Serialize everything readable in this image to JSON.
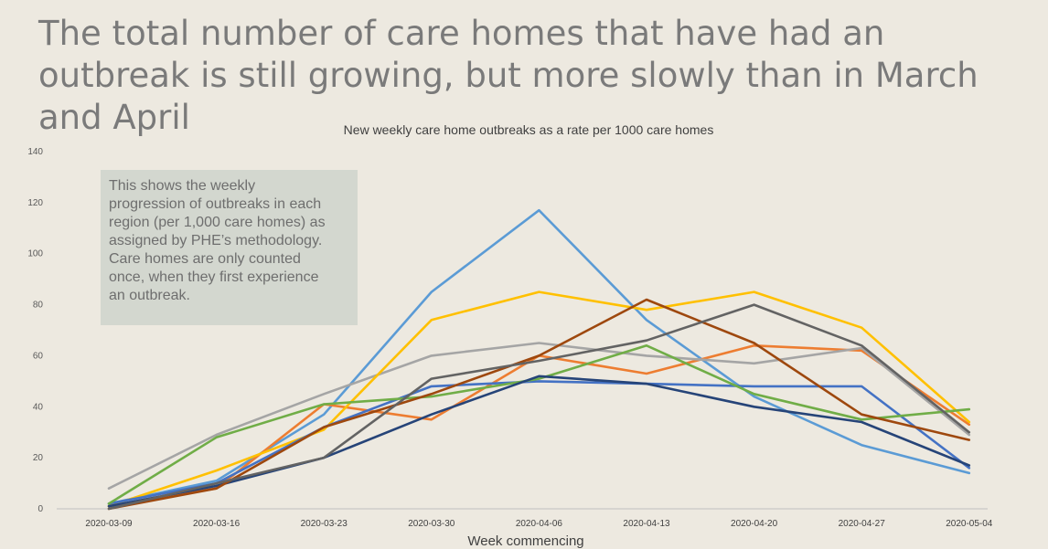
{
  "headline": "The total number of care homes that have had an outbreak is still growing, but more slowly than in March and April",
  "note": "This shows the weekly\nprogression of outbreaks in each\nregion (per 1,000 care homes) as\nassigned by PHE’s methodology.\nCare homes are only counted\nonce, when they first experience\nan outbreak.",
  "chart_data": {
    "type": "line",
    "title": "New weekly care home outbreaks as a rate per 1000 care homes",
    "xlabel": "Week commencing",
    "ylabel": "",
    "ylim": [
      0,
      140
    ],
    "yticks": [
      0,
      20,
      40,
      60,
      80,
      100,
      120,
      140
    ],
    "grid": false,
    "legend": "none",
    "categories": [
      "2020-03-09",
      "2020-03-16",
      "2020-03-23",
      "2020-03-30",
      "2020-04-06",
      "2020-04-13",
      "2020-04-20",
      "2020-04-27",
      "2020-05-04"
    ],
    "series": [
      {
        "color": "#5B9BD5",
        "values": [
          2,
          11,
          37,
          85,
          117,
          74,
          44,
          25,
          14
        ]
      },
      {
        "color": "#ED7D31",
        "values": [
          1,
          8,
          41,
          35,
          60,
          53,
          64,
          62,
          33
        ]
      },
      {
        "color": "#A5A5A5",
        "values": [
          8,
          29,
          45,
          60,
          65,
          60,
          57,
          63,
          29
        ]
      },
      {
        "color": "#FFC000",
        "values": [
          1,
          15,
          31,
          74,
          85,
          78,
          85,
          71,
          34
        ]
      },
      {
        "color": "#4472C4",
        "values": [
          2,
          10,
          32,
          48,
          50,
          49,
          48,
          48,
          16
        ]
      },
      {
        "color": "#70AD47",
        "values": [
          2,
          28,
          41,
          44,
          51,
          64,
          45,
          35,
          39
        ]
      },
      {
        "color": "#264478",
        "values": [
          1,
          9,
          20,
          37,
          52,
          49,
          40,
          34,
          17
        ]
      },
      {
        "color": "#9E480E",
        "values": [
          0,
          8,
          32,
          45,
          60,
          82,
          65,
          37,
          27
        ]
      },
      {
        "color": "#636363",
        "values": [
          0,
          10,
          20,
          51,
          58,
          66,
          80,
          64,
          30
        ]
      }
    ]
  }
}
